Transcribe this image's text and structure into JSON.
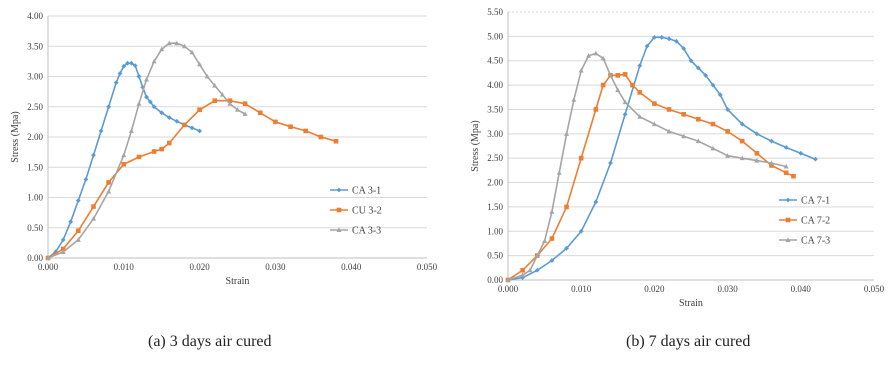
{
  "captions": [
    "(a) 3 days air cured",
    "(b) 7 days air cured"
  ],
  "chart_data": [
    {
      "type": "line",
      "xlabel": "Strain",
      "ylabel": "Stress (Mpa)",
      "xlim": [
        0,
        0.05
      ],
      "ylim": [
        0,
        4
      ],
      "x_ticks": [
        "0.000",
        "0.010",
        "0.020",
        "0.030",
        "0.040",
        "0.050"
      ],
      "y_ticks": [
        "0.00",
        "0.50",
        "1.00",
        "1.50",
        "2.00",
        "2.50",
        "3.00",
        "3.50",
        "4.00"
      ],
      "grid": "horizontal",
      "legend": "right",
      "series": [
        {
          "name": "CA 3-1",
          "color": "#5b9bd5",
          "marker": "diamond",
          "x": [
            0,
            0.001,
            0.002,
            0.003,
            0.004,
            0.005,
            0.006,
            0.007,
            0.008,
            0.009,
            0.0095,
            0.01,
            0.0105,
            0.011,
            0.0115,
            0.012,
            0.0125,
            0.013,
            0.0135,
            0.014,
            0.015,
            0.016,
            0.017,
            0.018,
            0.019,
            0.02
          ],
          "y": [
            0,
            0.1,
            0.3,
            0.6,
            0.95,
            1.3,
            1.7,
            2.1,
            2.5,
            2.9,
            3.05,
            3.17,
            3.22,
            3.22,
            3.18,
            3.0,
            2.82,
            2.66,
            2.58,
            2.5,
            2.4,
            2.32,
            2.26,
            2.2,
            2.15,
            2.1
          ]
        },
        {
          "name": "CU 3-2",
          "color": "#ed7d31",
          "marker": "square",
          "x": [
            0,
            0.002,
            0.004,
            0.006,
            0.008,
            0.01,
            0.012,
            0.014,
            0.015,
            0.016,
            0.018,
            0.02,
            0.022,
            0.024,
            0.026,
            0.028,
            0.03,
            0.032,
            0.034,
            0.036,
            0.038
          ],
          "y": [
            0,
            0.15,
            0.45,
            0.85,
            1.25,
            1.55,
            1.67,
            1.76,
            1.8,
            1.9,
            2.2,
            2.45,
            2.6,
            2.6,
            2.55,
            2.4,
            2.25,
            2.17,
            2.1,
            2.0,
            1.93
          ]
        },
        {
          "name": "CA 3-3",
          "color": "#a5a5a5",
          "marker": "triangle",
          "x": [
            0,
            0.002,
            0.004,
            0.006,
            0.008,
            0.01,
            0.011,
            0.012,
            0.013,
            0.014,
            0.015,
            0.016,
            0.017,
            0.018,
            0.019,
            0.02,
            0.021,
            0.022,
            0.023,
            0.024,
            0.025,
            0.026
          ],
          "y": [
            0,
            0.1,
            0.3,
            0.65,
            1.1,
            1.7,
            2.1,
            2.55,
            2.95,
            3.25,
            3.45,
            3.55,
            3.55,
            3.5,
            3.4,
            3.2,
            3.0,
            2.85,
            2.7,
            2.55,
            2.45,
            2.38
          ]
        }
      ]
    },
    {
      "type": "line",
      "xlabel": "Strain",
      "ylabel": "Stress (Mpa)",
      "xlim": [
        0,
        0.05
      ],
      "ylim": [
        0,
        5.5
      ],
      "x_ticks": [
        "0.000",
        "0.010",
        "0.020",
        "0.030",
        "0.040",
        "0.050"
      ],
      "y_ticks": [
        "0.00",
        "0.50",
        "1.00",
        "1.50",
        "2.00",
        "2.50",
        "3.00",
        "3.50",
        "4.00",
        "4.50",
        "5.00",
        "5.50"
      ],
      "grid": "horizontal",
      "legend": "right",
      "series": [
        {
          "name": "CA 7-1",
          "color": "#5b9bd5",
          "marker": "diamond",
          "x": [
            0,
            0.002,
            0.004,
            0.006,
            0.008,
            0.01,
            0.012,
            0.014,
            0.016,
            0.018,
            0.019,
            0.02,
            0.021,
            0.022,
            0.023,
            0.024,
            0.025,
            0.026,
            0.027,
            0.028,
            0.029,
            0.03,
            0.032,
            0.034,
            0.036,
            0.038,
            0.04,
            0.042
          ],
          "y": [
            0,
            0.05,
            0.2,
            0.4,
            0.65,
            1.0,
            1.6,
            2.4,
            3.4,
            4.4,
            4.8,
            4.98,
            4.98,
            4.95,
            4.9,
            4.75,
            4.5,
            4.35,
            4.2,
            4.0,
            3.8,
            3.5,
            3.2,
            3.0,
            2.85,
            2.72,
            2.6,
            2.48
          ]
        },
        {
          "name": "CA 7-2",
          "color": "#ed7d31",
          "marker": "square",
          "x": [
            0,
            0.002,
            0.004,
            0.006,
            0.008,
            0.01,
            0.012,
            0.013,
            0.014,
            0.015,
            0.016,
            0.017,
            0.018,
            0.02,
            0.022,
            0.024,
            0.026,
            0.028,
            0.03,
            0.032,
            0.034,
            0.036,
            0.038,
            0.039
          ],
          "y": [
            0,
            0.2,
            0.5,
            0.85,
            1.5,
            2.5,
            3.5,
            4.0,
            4.2,
            4.2,
            4.22,
            4.0,
            3.85,
            3.62,
            3.5,
            3.4,
            3.3,
            3.2,
            3.05,
            2.85,
            2.6,
            2.35,
            2.2,
            2.13
          ]
        },
        {
          "name": "CA 7-3",
          "color": "#a5a5a5",
          "marker": "triangle",
          "x": [
            0,
            0.002,
            0.003,
            0.004,
            0.005,
            0.006,
            0.007,
            0.008,
            0.009,
            0.01,
            0.011,
            0.012,
            0.013,
            0.014,
            0.015,
            0.016,
            0.018,
            0.02,
            0.022,
            0.024,
            0.026,
            0.028,
            0.03,
            0.032,
            0.034,
            0.036,
            0.038
          ],
          "y": [
            0,
            0.1,
            0.2,
            0.5,
            0.8,
            1.4,
            2.2,
            3.0,
            3.7,
            4.3,
            4.6,
            4.65,
            4.55,
            4.2,
            3.9,
            3.65,
            3.35,
            3.2,
            3.05,
            2.95,
            2.85,
            2.7,
            2.55,
            2.5,
            2.45,
            2.4,
            2.33
          ]
        }
      ]
    }
  ]
}
